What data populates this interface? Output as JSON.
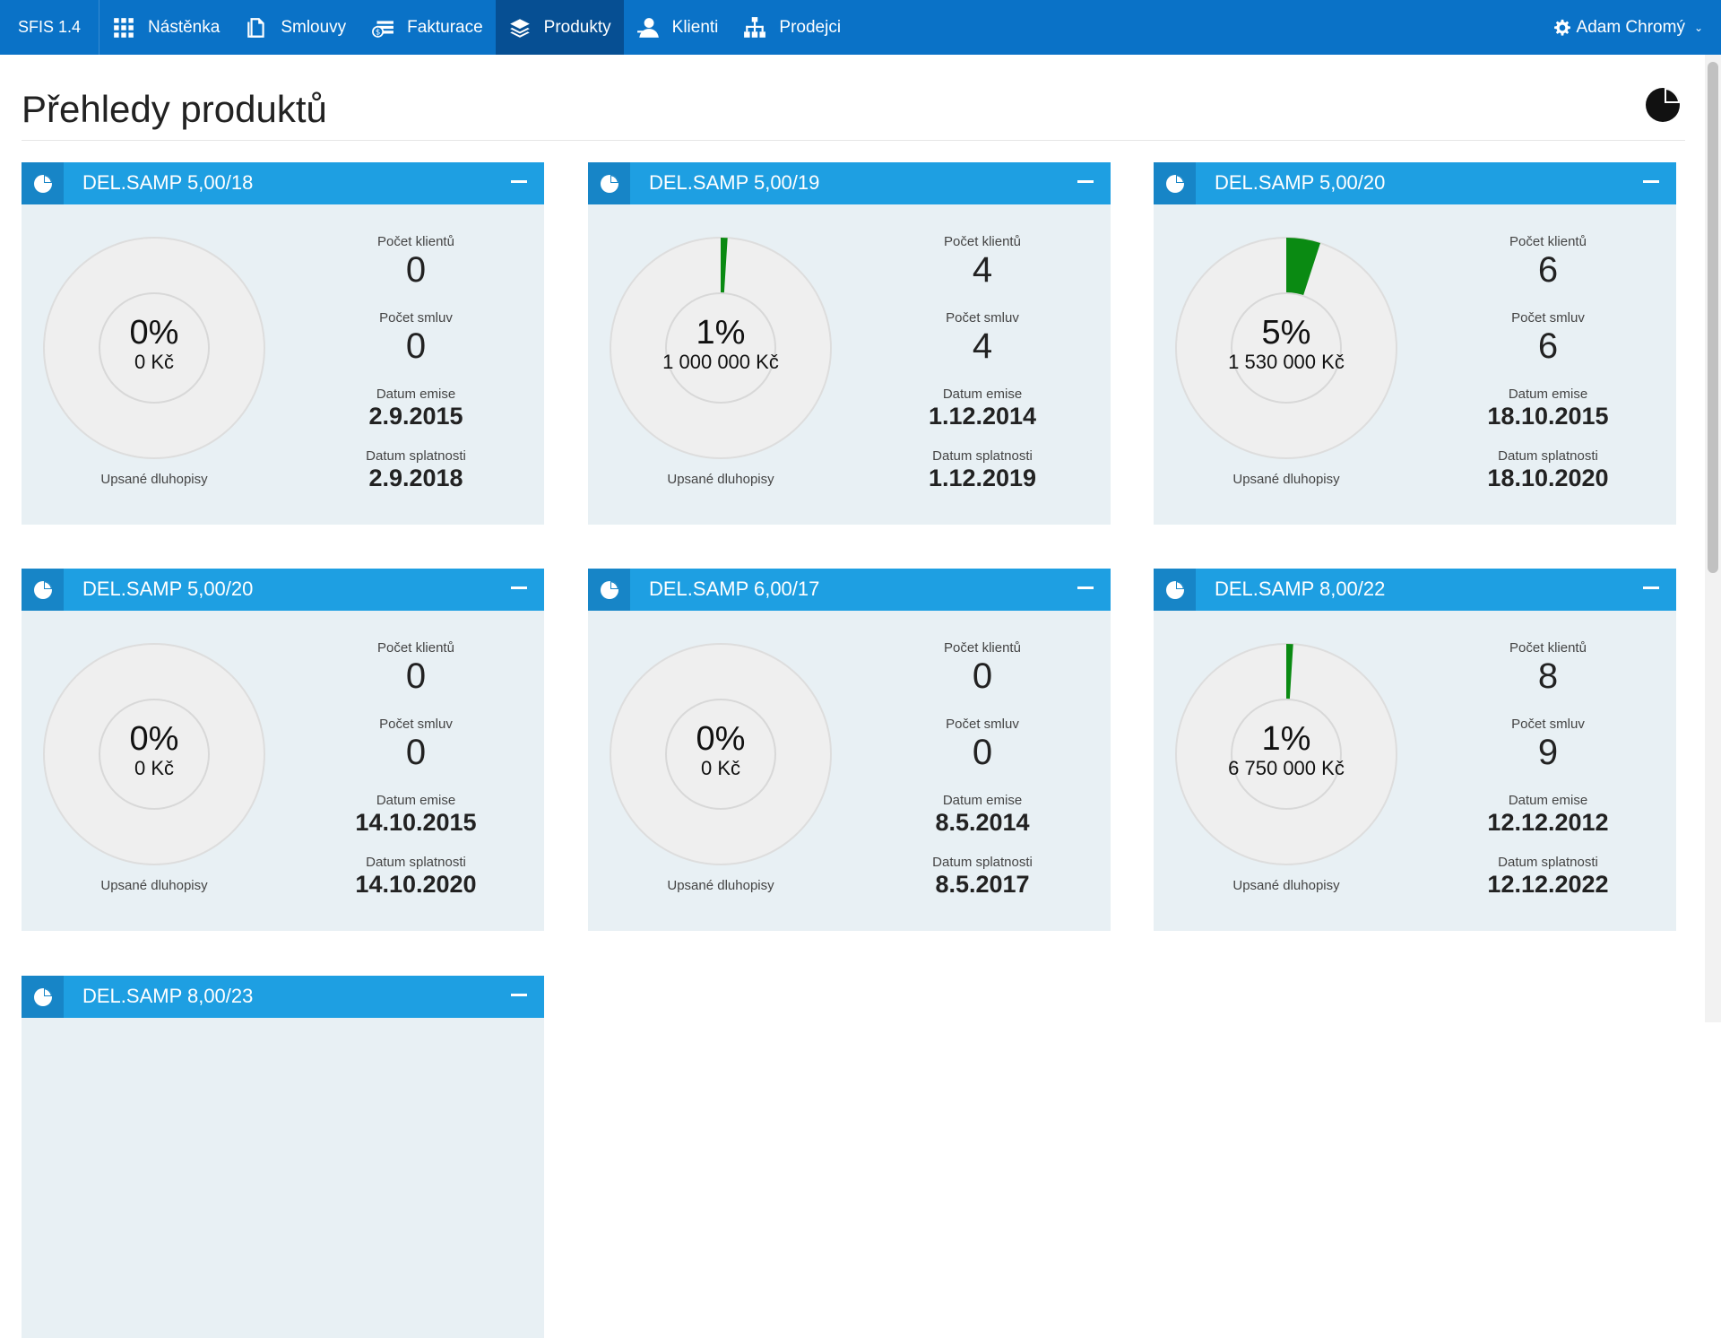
{
  "app": {
    "brand": "SFIS 1.4"
  },
  "nav": {
    "items": [
      {
        "label": "Nástěnka",
        "icon": "grid-icon"
      },
      {
        "label": "Smlouvy",
        "icon": "document-icon"
      },
      {
        "label": "Fakturace",
        "icon": "money-icon"
      },
      {
        "label": "Produkty",
        "icon": "layers-icon",
        "active": true
      },
      {
        "label": "Klienti",
        "icon": "user-icon"
      },
      {
        "label": "Prodejci",
        "icon": "org-chart-icon"
      }
    ],
    "user": {
      "name": "Adam Chromý",
      "icon": "gear-icon"
    }
  },
  "page": {
    "title": "Přehledy produktů"
  },
  "labels": {
    "clients": "Počet klientů",
    "contracts": "Počet smluv",
    "issue_date": "Datum emise",
    "maturity_date": "Datum splatnosti",
    "subscribed": "Upsané dluhopisy"
  },
  "colors": {
    "navbar": "#0a72c7",
    "active_nav": "#064f93",
    "card_header": "#1e9fe2",
    "progress": "#0a8a12"
  },
  "products": [
    {
      "name": "DEL.SAMP 5,00/18",
      "percent": "0%",
      "percent_value": 0,
      "amount": "0 Kč",
      "clients": "0",
      "contracts": "0",
      "issue_date": "2.9.2015",
      "maturity_date": "2.9.2018"
    },
    {
      "name": "DEL.SAMP 5,00/19",
      "percent": "1%",
      "percent_value": 1,
      "amount": "1 000 000 Kč",
      "clients": "4",
      "contracts": "4",
      "issue_date": "1.12.2014",
      "maturity_date": "1.12.2019"
    },
    {
      "name": "DEL.SAMP 5,00/20",
      "percent": "5%",
      "percent_value": 5,
      "amount": "1 530 000 Kč",
      "clients": "6",
      "contracts": "6",
      "issue_date": "18.10.2015",
      "maturity_date": "18.10.2020"
    },
    {
      "name": "DEL.SAMP 5,00/20",
      "percent": "0%",
      "percent_value": 0,
      "amount": "0 Kč",
      "clients": "0",
      "contracts": "0",
      "issue_date": "14.10.2015",
      "maturity_date": "14.10.2020"
    },
    {
      "name": "DEL.SAMP 6,00/17",
      "percent": "0%",
      "percent_value": 0,
      "amount": "0 Kč",
      "clients": "0",
      "contracts": "0",
      "issue_date": "8.5.2014",
      "maturity_date": "8.5.2017"
    },
    {
      "name": "DEL.SAMP 8,00/22",
      "percent": "1%",
      "percent_value": 1,
      "amount": "6 750 000 Kč",
      "clients": "8",
      "contracts": "9",
      "issue_date": "12.12.2012",
      "maturity_date": "12.12.2022"
    },
    {
      "name": "DEL.SAMP 8,00/23"
    }
  ]
}
